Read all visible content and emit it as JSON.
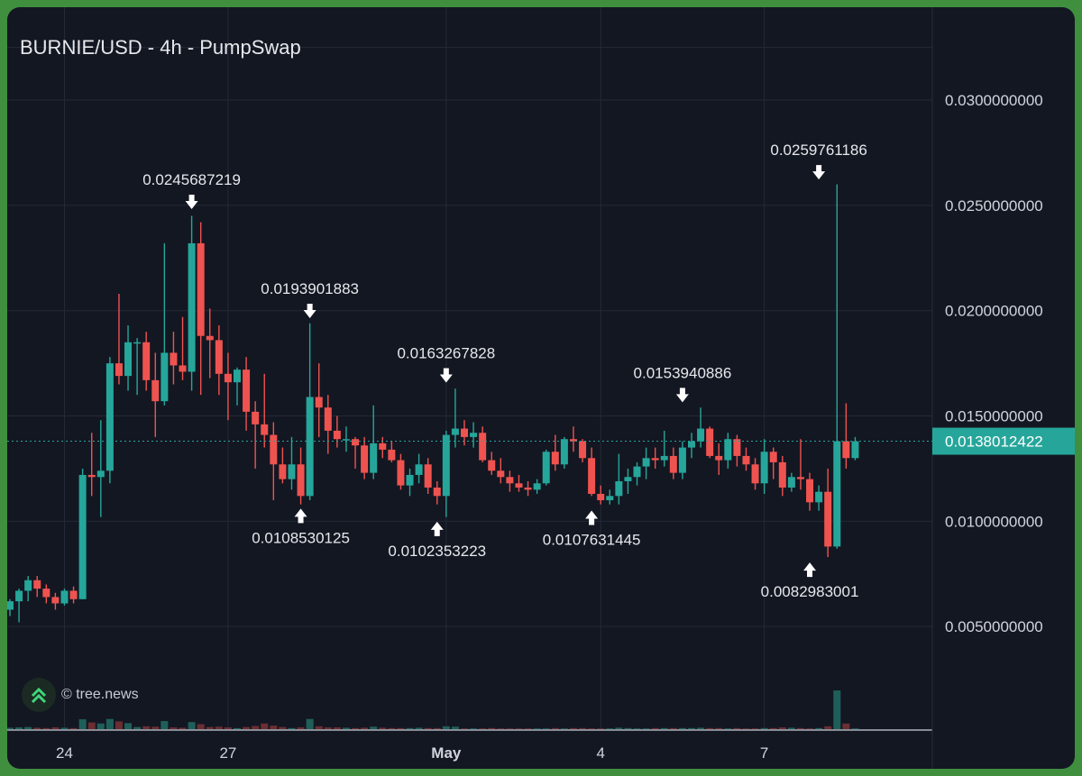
{
  "title": "BURNIE/USD - 4h - PumpSwap",
  "watermark": "© tree.news",
  "colors": {
    "up": "#26a69a",
    "down": "#ef5350",
    "grid": "#232a36",
    "text": "#e6e8ec",
    "axis": "#d1d4dc",
    "last_price_bg": "#26a69a"
  },
  "chart_data": {
    "type": "candlestick",
    "title": "BURNIE/USD - 4h - PumpSwap",
    "ylim": [
      0,
      0.034
    ],
    "y_ticks": [
      {
        "value": 0.03,
        "label": "0.0300000000"
      },
      {
        "value": 0.025,
        "label": "0.0250000000"
      },
      {
        "value": 0.02,
        "label": "0.0200000000"
      },
      {
        "value": 0.015,
        "label": "0.0150000000"
      },
      {
        "value": 0.01,
        "label": "0.0100000000"
      },
      {
        "value": 0.005,
        "label": "0.0050000000"
      }
    ],
    "x_ticks": [
      {
        "index": 6,
        "label": "24",
        "bold": false
      },
      {
        "index": 24,
        "label": "27",
        "bold": false
      },
      {
        "index": 48,
        "label": "May",
        "bold": true
      },
      {
        "index": 65,
        "label": "4",
        "bold": false
      },
      {
        "index": 83,
        "label": "7",
        "bold": false
      }
    ],
    "last_price": {
      "value": 0.0138012422,
      "label": "0.0138012422"
    },
    "annotations": [
      {
        "index": 20,
        "value": 0.0245687219,
        "label": "0.0245687219",
        "position": "above"
      },
      {
        "index": 33,
        "value": 0.0193901883,
        "label": "0.0193901883",
        "position": "above"
      },
      {
        "index": 48,
        "value": 0.0163267828,
        "label": "0.0163267828",
        "position": "above"
      },
      {
        "index": 74,
        "value": 0.0153940886,
        "label": "0.0153940886",
        "position": "above"
      },
      {
        "index": 89,
        "value": 0.0259761186,
        "label": "0.0259761186",
        "position": "above"
      },
      {
        "index": 32,
        "value": 0.0108530125,
        "label": "0.0108530125",
        "position": "below"
      },
      {
        "index": 47,
        "value": 0.0102353223,
        "label": "0.0102353223",
        "position": "below"
      },
      {
        "index": 64,
        "value": 0.0107631445,
        "label": "0.0107631445",
        "position": "below"
      },
      {
        "index": 88,
        "value": 0.0082983001,
        "label": "0.0082983001",
        "position": "below"
      }
    ],
    "candles": [
      [
        0.0058,
        0.0063,
        0.0055,
        0.0062
      ],
      [
        0.0062,
        0.0068,
        0.0052,
        0.0067
      ],
      [
        0.0067,
        0.0074,
        0.0062,
        0.0072
      ],
      [
        0.0072,
        0.0074,
        0.0064,
        0.0068
      ],
      [
        0.0068,
        0.007,
        0.0061,
        0.0064
      ],
      [
        0.0064,
        0.0066,
        0.0058,
        0.0061
      ],
      [
        0.0061,
        0.0068,
        0.006,
        0.0067
      ],
      [
        0.0067,
        0.0069,
        0.0061,
        0.0063
      ],
      [
        0.0063,
        0.0125,
        0.0063,
        0.0122
      ],
      [
        0.0122,
        0.0142,
        0.0112,
        0.0121
      ],
      [
        0.0121,
        0.0148,
        0.0102,
        0.0124
      ],
      [
        0.0124,
        0.0178,
        0.0118,
        0.0175
      ],
      [
        0.0175,
        0.0208,
        0.0165,
        0.0169
      ],
      [
        0.0169,
        0.0193,
        0.0162,
        0.0185
      ],
      [
        0.0185,
        0.0187,
        0.016,
        0.0185
      ],
      [
        0.0185,
        0.019,
        0.0162,
        0.0167
      ],
      [
        0.0167,
        0.018,
        0.014,
        0.0157
      ],
      [
        0.0157,
        0.0232,
        0.0155,
        0.018
      ],
      [
        0.018,
        0.019,
        0.0165,
        0.0174
      ],
      [
        0.0174,
        0.0197,
        0.0167,
        0.0171
      ],
      [
        0.0171,
        0.0245,
        0.0162,
        0.0232
      ],
      [
        0.0232,
        0.0242,
        0.016,
        0.0188
      ],
      [
        0.0188,
        0.0201,
        0.0168,
        0.0186
      ],
      [
        0.0186,
        0.0193,
        0.016,
        0.017
      ],
      [
        0.017,
        0.018,
        0.0148,
        0.0166
      ],
      [
        0.0166,
        0.0173,
        0.0155,
        0.0172
      ],
      [
        0.0172,
        0.0178,
        0.0143,
        0.0152
      ],
      [
        0.0152,
        0.0157,
        0.0125,
        0.0146
      ],
      [
        0.0146,
        0.017,
        0.0135,
        0.0141
      ],
      [
        0.0141,
        0.0147,
        0.011,
        0.0127
      ],
      [
        0.0127,
        0.0135,
        0.0118,
        0.012
      ],
      [
        0.012,
        0.014,
        0.0115,
        0.0127
      ],
      [
        0.0127,
        0.0135,
        0.0108,
        0.0112
      ],
      [
        0.0112,
        0.0194,
        0.011,
        0.0159
      ],
      [
        0.0159,
        0.0175,
        0.014,
        0.0154
      ],
      [
        0.0154,
        0.016,
        0.0132,
        0.0143
      ],
      [
        0.0143,
        0.015,
        0.0135,
        0.0139
      ],
      [
        0.0139,
        0.0145,
        0.0133,
        0.0139
      ],
      [
        0.0139,
        0.014,
        0.0125,
        0.0136
      ],
      [
        0.0136,
        0.014,
        0.012,
        0.0123
      ],
      [
        0.0123,
        0.0155,
        0.012,
        0.0137
      ],
      [
        0.0137,
        0.014,
        0.013,
        0.0134
      ],
      [
        0.0134,
        0.0138,
        0.0128,
        0.0129
      ],
      [
        0.0129,
        0.0132,
        0.0115,
        0.0117
      ],
      [
        0.0117,
        0.0125,
        0.0112,
        0.0122
      ],
      [
        0.0122,
        0.0132,
        0.0118,
        0.0127
      ],
      [
        0.0127,
        0.013,
        0.0113,
        0.0116
      ],
      [
        0.0116,
        0.0119,
        0.0108,
        0.0112
      ],
      [
        0.0112,
        0.0143,
        0.0102,
        0.0141
      ],
      [
        0.0141,
        0.0163,
        0.0135,
        0.0144
      ],
      [
        0.0144,
        0.0148,
        0.0136,
        0.014
      ],
      [
        0.014,
        0.0147,
        0.0135,
        0.0142
      ],
      [
        0.0142,
        0.0145,
        0.0128,
        0.0129
      ],
      [
        0.0129,
        0.0133,
        0.0122,
        0.0124
      ],
      [
        0.0124,
        0.013,
        0.0118,
        0.0121
      ],
      [
        0.0121,
        0.0124,
        0.0114,
        0.0118
      ],
      [
        0.0118,
        0.0122,
        0.0114,
        0.0116
      ],
      [
        0.0116,
        0.0119,
        0.0112,
        0.0115
      ],
      [
        0.0115,
        0.012,
        0.0113,
        0.0118
      ],
      [
        0.0118,
        0.0134,
        0.0117,
        0.0133
      ],
      [
        0.0133,
        0.0141,
        0.0124,
        0.0127
      ],
      [
        0.0127,
        0.014,
        0.0125,
        0.0139
      ],
      [
        0.0139,
        0.0145,
        0.0133,
        0.0138
      ],
      [
        0.0138,
        0.0139,
        0.0128,
        0.013
      ],
      [
        0.013,
        0.0135,
        0.0112,
        0.0113
      ],
      [
        0.0113,
        0.0117,
        0.0108,
        0.011
      ],
      [
        0.011,
        0.0115,
        0.0108,
        0.0112
      ],
      [
        0.0112,
        0.0132,
        0.0108,
        0.0119
      ],
      [
        0.0119,
        0.0125,
        0.0113,
        0.0121
      ],
      [
        0.0121,
        0.0128,
        0.0117,
        0.0126
      ],
      [
        0.0126,
        0.0135,
        0.012,
        0.013
      ],
      [
        0.013,
        0.0135,
        0.0125,
        0.0129
      ],
      [
        0.0129,
        0.0143,
        0.0126,
        0.0131
      ],
      [
        0.0131,
        0.0135,
        0.012,
        0.0123
      ],
      [
        0.0123,
        0.0138,
        0.012,
        0.0135
      ],
      [
        0.0135,
        0.0142,
        0.013,
        0.0138
      ],
      [
        0.0138,
        0.0154,
        0.0135,
        0.0144
      ],
      [
        0.0144,
        0.0145,
        0.013,
        0.0131
      ],
      [
        0.0131,
        0.0137,
        0.0122,
        0.0129
      ],
      [
        0.0129,
        0.0142,
        0.0125,
        0.0139
      ],
      [
        0.0139,
        0.0141,
        0.0126,
        0.0131
      ],
      [
        0.0131,
        0.0135,
        0.0124,
        0.0127
      ],
      [
        0.0127,
        0.013,
        0.0115,
        0.0118
      ],
      [
        0.0118,
        0.0139,
        0.0113,
        0.0133
      ],
      [
        0.0133,
        0.0135,
        0.012,
        0.0128
      ],
      [
        0.0128,
        0.0131,
        0.0112,
        0.0116
      ],
      [
        0.0116,
        0.0123,
        0.0114,
        0.0121
      ],
      [
        0.0121,
        0.0139,
        0.0115,
        0.012
      ],
      [
        0.012,
        0.0123,
        0.0105,
        0.0109
      ],
      [
        0.0109,
        0.0117,
        0.0105,
        0.0114
      ],
      [
        0.0114,
        0.0125,
        0.0083,
        0.0088
      ],
      [
        0.0088,
        0.026,
        0.0087,
        0.0138
      ],
      [
        0.0138,
        0.0156,
        0.0125,
        0.013
      ],
      [
        0.013,
        0.014,
        0.0129,
        0.0138
      ]
    ],
    "volumes": [
      0.4,
      0.5,
      0.6,
      0.4,
      0.3,
      0.5,
      0.4,
      0.3,
      2.8,
      1.9,
      1.6,
      2.9,
      2.2,
      1.7,
      0.6,
      0.8,
      0.7,
      2.3,
      0.5,
      0.4,
      2.0,
      1.4,
      0.6,
      0.7,
      0.5,
      0.3,
      0.6,
      0.9,
      1.6,
      1.0,
      0.6,
      0.3,
      0.5,
      2.9,
      0.8,
      0.5,
      0.5,
      0.4,
      0.3,
      0.4,
      0.7,
      0.4,
      0.3,
      0.3,
      0.3,
      0.4,
      0.3,
      0.3,
      0.8,
      0.7,
      0.2,
      0.2,
      0.2,
      0.3,
      0.2,
      0.2,
      0.2,
      0.2,
      0.2,
      0.2,
      0.3,
      0.2,
      0.3,
      0.3,
      0.2,
      0.2,
      0.2,
      0.4,
      0.3,
      0.2,
      0.2,
      0.3,
      0.3,
      0.3,
      0.3,
      0.3,
      0.4,
      0.3,
      0.3,
      0.2,
      0.3,
      0.2,
      0.2,
      0.3,
      0.3,
      0.5,
      0.4,
      0.3,
      0.2,
      0.3,
      0.8,
      11.0,
      1.6,
      0.2
    ]
  }
}
